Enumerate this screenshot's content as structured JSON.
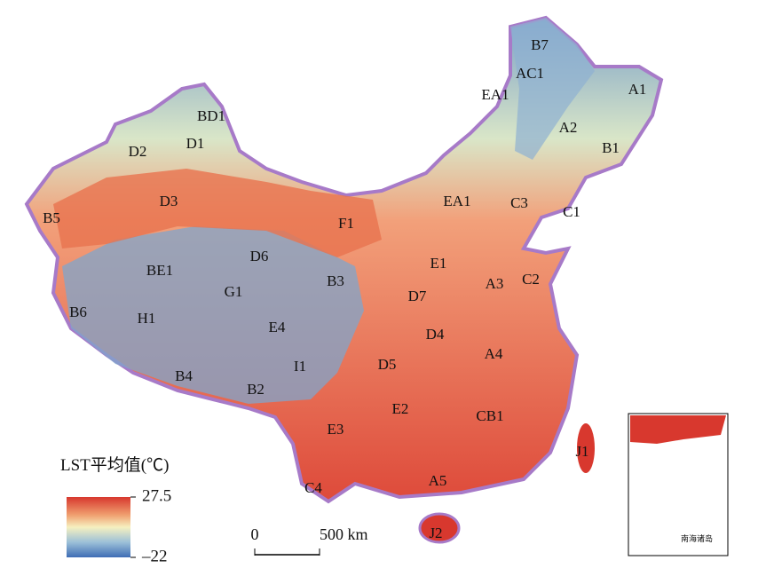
{
  "map": {
    "regions": [
      "B7",
      "AC1",
      "EA1",
      "A1",
      "BD1",
      "D1",
      "D2",
      "A2",
      "B1",
      "D3",
      "EA1",
      "C3",
      "C1",
      "B5",
      "F1",
      "D6",
      "E1",
      "BE1",
      "A3",
      "C2",
      "B3",
      "G1",
      "D7",
      "B6",
      "H1",
      "E4",
      "D4",
      "A4",
      "D5",
      "I1",
      "B4",
      "B2",
      "E2",
      "CB1",
      "E3",
      "J1",
      "A5",
      "C4",
      "J2"
    ],
    "legend": {
      "title": "LST平均值(℃)",
      "ticks": [
        27.5,
        {
          "value": -22,
          "label": "–22"
        }
      ]
    },
    "scale_bar": {
      "ticks": [
        0,
        {
          "value": 500,
          "label": "500 km"
        }
      ]
    },
    "inset_label": "南海诸岛"
  }
}
